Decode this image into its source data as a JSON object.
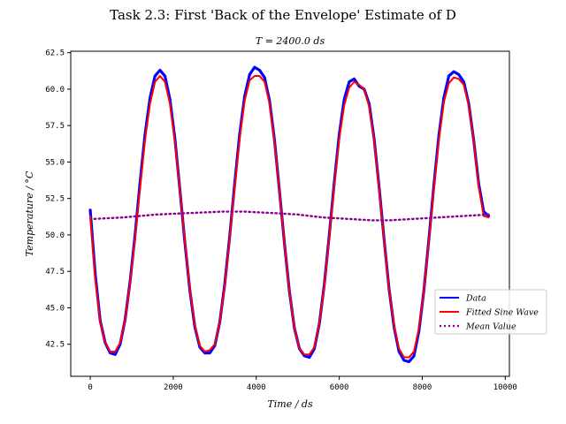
{
  "chart_data": {
    "type": "line",
    "suptitle": "Task 2.3: First 'Back of the Envelope' Estimate of D",
    "title": "T = 2400.0 ds",
    "xlabel": "Time / ds",
    "ylabel": "Temperature / °C",
    "xlim": [
      -470,
      10100
    ],
    "ylim": [
      40.3,
      62.6
    ],
    "xticks": [
      0,
      2000,
      4000,
      6000,
      8000,
      10000
    ],
    "xtick_labels": [
      "0",
      "2000",
      "4000",
      "6000",
      "8000",
      "10000"
    ],
    "yticks": [
      42.5,
      45.0,
      47.5,
      50.0,
      52.5,
      55.0,
      57.5,
      60.0,
      62.5
    ],
    "ytick_labels": [
      "42.5",
      "45.0",
      "47.5",
      "50.0",
      "52.5",
      "55.0",
      "57.5",
      "60.0",
      "62.5"
    ],
    "grid": false,
    "legend_position": "lower-right",
    "series": [
      {
        "name": "Data",
        "color": "#0000ff",
        "style": "solid",
        "x": [
          0,
          120,
          240,
          360,
          480,
          600,
          720,
          840,
          960,
          1080,
          1200,
          1320,
          1440,
          1560,
          1680,
          1800,
          1920,
          2040,
          2160,
          2280,
          2400,
          2520,
          2640,
          2760,
          2880,
          3000,
          3120,
          3240,
          3360,
          3480,
          3600,
          3720,
          3840,
          3960,
          4080,
          4200,
          4320,
          4440,
          4560,
          4680,
          4800,
          4920,
          5040,
          5160,
          5280,
          5400,
          5520,
          5640,
          5760,
          5880,
          6000,
          6120,
          6240,
          6360,
          6480,
          6600,
          6720,
          6840,
          6960,
          7080,
          7200,
          7320,
          7440,
          7560,
          7680,
          7800,
          7920,
          8040,
          8160,
          8280,
          8400,
          8520,
          8640,
          8760,
          8880,
          9000,
          9120,
          9240,
          9360,
          9480,
          9600
        ],
        "values": [
          51.7,
          47.3,
          44.1,
          42.6,
          41.9,
          41.8,
          42.5,
          44.2,
          46.8,
          50.0,
          53.6,
          56.9,
          59.4,
          60.9,
          61.3,
          60.9,
          59.3,
          56.6,
          53.1,
          49.5,
          46.2,
          43.7,
          42.3,
          41.9,
          41.9,
          42.4,
          44.0,
          46.6,
          49.9,
          53.5,
          56.9,
          59.5,
          61.0,
          61.5,
          61.3,
          60.8,
          59.2,
          56.5,
          53.0,
          49.4,
          46.1,
          43.6,
          42.2,
          41.7,
          41.6,
          42.2,
          43.9,
          46.6,
          50.0,
          53.6,
          56.9,
          59.3,
          60.5,
          60.7,
          60.2,
          60.0,
          59.0,
          56.6,
          53.3,
          49.7,
          46.3,
          43.7,
          42.0,
          41.4,
          41.3,
          41.7,
          43.4,
          46.2,
          49.7,
          53.4,
          56.8,
          59.4,
          60.9,
          61.2,
          61.0,
          60.5,
          59.0,
          56.5,
          53.5,
          51.6,
          51.3
        ]
      },
      {
        "name": "Fitted Sine Wave",
        "color": "#ff0000",
        "style": "solid",
        "x": [
          0,
          120,
          240,
          360,
          480,
          600,
          720,
          840,
          960,
          1080,
          1200,
          1320,
          1440,
          1560,
          1680,
          1800,
          1920,
          2040,
          2160,
          2280,
          2400,
          2520,
          2640,
          2760,
          2880,
          3000,
          3120,
          3240,
          3360,
          3480,
          3600,
          3720,
          3840,
          3960,
          4080,
          4200,
          4320,
          4440,
          4560,
          4680,
          4800,
          4920,
          5040,
          5160,
          5280,
          5400,
          5520,
          5640,
          5760,
          5880,
          6000,
          6120,
          6240,
          6360,
          6480,
          6600,
          6720,
          6840,
          6960,
          7080,
          7200,
          7320,
          7440,
          7560,
          7680,
          7800,
          7920,
          8040,
          8160,
          8280,
          8400,
          8520,
          8640,
          8760,
          8880,
          9000,
          9120,
          9240,
          9360,
          9480,
          9600
        ],
        "values": [
          51.3,
          47.0,
          44.0,
          42.6,
          42.0,
          42.0,
          42.6,
          44.2,
          46.7,
          49.8,
          53.2,
          56.5,
          59.0,
          60.5,
          60.9,
          60.5,
          59.0,
          56.4,
          53.1,
          49.6,
          46.3,
          43.8,
          42.4,
          42.0,
          42.1,
          42.5,
          44.0,
          46.5,
          49.8,
          53.3,
          56.6,
          59.2,
          60.6,
          60.9,
          60.9,
          60.5,
          59.0,
          56.4,
          53.0,
          49.4,
          46.1,
          43.6,
          42.2,
          41.8,
          41.8,
          42.3,
          43.9,
          46.5,
          49.9,
          53.4,
          56.6,
          58.9,
          60.1,
          60.5,
          60.3,
          60.0,
          58.8,
          56.5,
          53.2,
          49.6,
          46.3,
          43.8,
          42.2,
          41.6,
          41.6,
          42.0,
          43.6,
          46.2,
          49.6,
          53.2,
          56.5,
          59.1,
          60.4,
          60.8,
          60.7,
          60.3,
          58.9,
          56.5,
          53.3,
          51.3,
          51.2
        ]
      },
      {
        "name": "Mean Value",
        "color": "#8b008b",
        "style": "dotted",
        "x": [
          100,
          800,
          1600,
          2400,
          3200,
          3700,
          4400,
          5000,
          5600,
          6200,
          6800,
          7200,
          7800,
          8400,
          9000,
          9600
        ],
        "values": [
          51.1,
          51.2,
          51.4,
          51.5,
          51.6,
          51.6,
          51.5,
          51.4,
          51.2,
          51.1,
          51.0,
          51.0,
          51.1,
          51.2,
          51.3,
          51.4
        ]
      }
    ]
  }
}
